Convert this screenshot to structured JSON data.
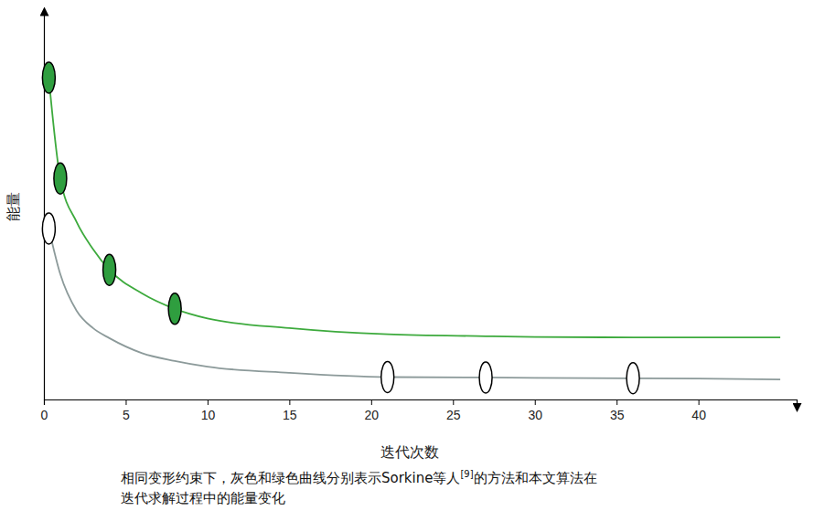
{
  "chart_data": {
    "type": "line",
    "xlabel": "迭代次数",
    "ylabel": "能量",
    "caption": [
      "相同变形约束下，灰色和绿色曲线分别表示Sorkine等人",
      "[9]",
      "的方法和本文算法在",
      "迭代求解过程中的能量变化"
    ],
    "x": [
      0.3,
      1,
      2,
      3,
      4,
      6,
      8,
      10,
      15,
      21,
      27,
      30,
      36,
      40,
      45
    ],
    "series": [
      {
        "type": "line",
        "color": "#3daa3d",
        "values": [
          83.4,
          57.3,
          46,
          39,
          33.6,
          27.5,
          23.5,
          21,
          18.5,
          16.9,
          16.4,
          16.2,
          16.1,
          16.1,
          16.1
        ]
      },
      {
        "type": "line",
        "color": "#8c9a9a",
        "values": [
          44.3,
          32.5,
          23,
          18.5,
          15.9,
          12,
          10,
          8.5,
          6.9,
          5.8,
          5.7,
          5.6,
          5.5,
          5.4,
          5.2
        ]
      },
      {
        "type": "scatter",
        "marker": "ellipse",
        "color": "#2f9e3f",
        "values": [
          83.4,
          57.3,
          null,
          null,
          33.6,
          null,
          23.5,
          null,
          null,
          null,
          null,
          null,
          null,
          null,
          null
        ]
      },
      {
        "type": "scatter",
        "marker": "ellipse",
        "color": "#ffffff",
        "values": [
          44.3,
          null,
          null,
          null,
          null,
          null,
          null,
          null,
          null,
          5.8,
          5.7,
          null,
          5.5,
          null,
          null
        ]
      }
    ],
    "xlim": [
      0,
      46
    ],
    "xticks": [
      0,
      5,
      10,
      15,
      20,
      25,
      30,
      35,
      40
    ],
    "ylim": [
      0,
      100
    ],
    "tick_labels": "x",
    "grid": false
  }
}
